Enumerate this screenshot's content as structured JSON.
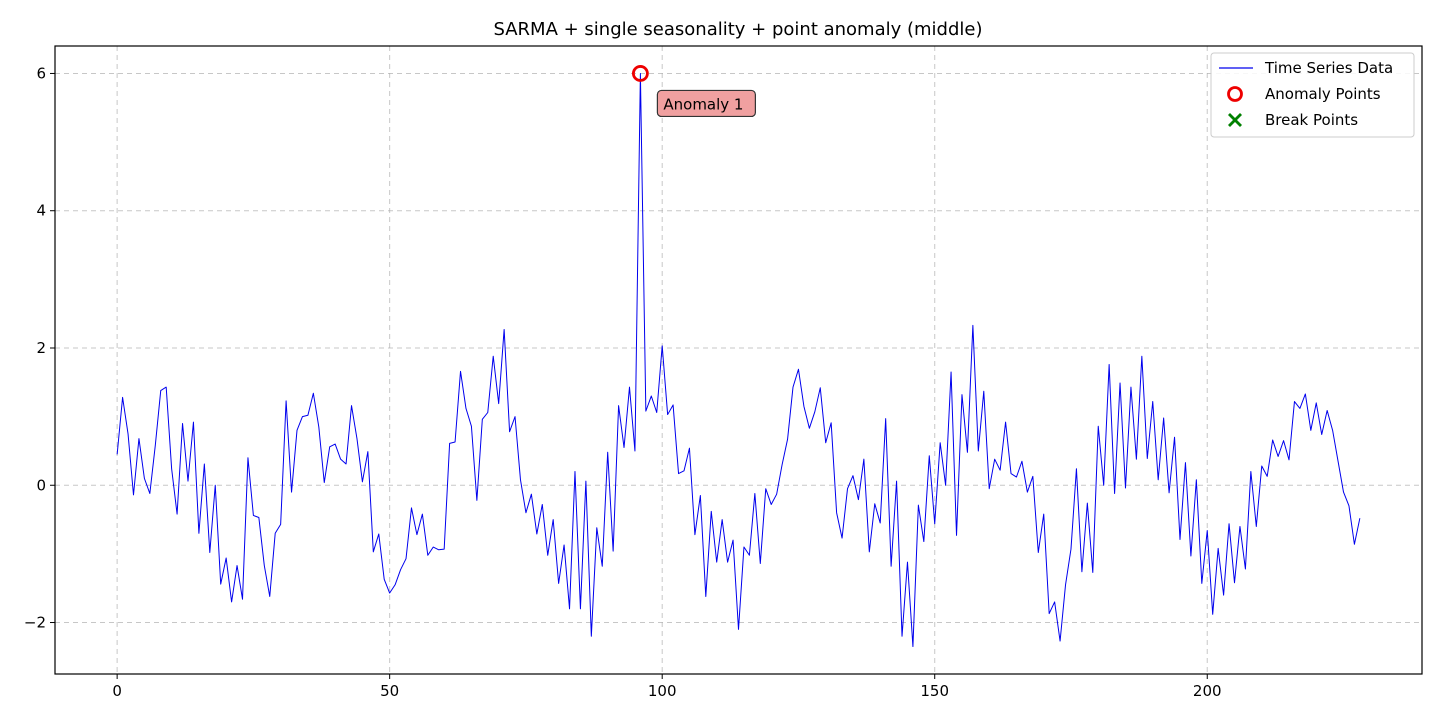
{
  "chart_data": {
    "type": "line",
    "title": "SARMA + single seasonality + point anomaly (middle)",
    "xlabel": "",
    "ylabel": "",
    "xlim": [
      -11.4,
      239.4
    ],
    "ylim": [
      -2.75,
      6.4
    ],
    "xticks": [
      0,
      50,
      100,
      150,
      200
    ],
    "yticks": [
      -2,
      0,
      2,
      4,
      6
    ],
    "ytick_labels": [
      "−2",
      "0",
      "2",
      "4",
      "6"
    ],
    "grid": true,
    "legend_position": "upper right",
    "colors": {
      "series": "#0000ee",
      "anomaly": "#ee0000",
      "break": "#008000",
      "annotation_fill": "#f0a0a0",
      "annotation_edge": "#333333"
    },
    "series": [
      {
        "name": "Time Series Data",
        "x_start": 0,
        "x_step": 1,
        "values": [
          0.45,
          1.28,
          0.75,
          -0.14,
          0.68,
          0.1,
          -0.12,
          0.58,
          1.38,
          1.43,
          0.24,
          -0.42,
          0.9,
          0.06,
          0.92,
          -0.7,
          0.31,
          -0.98,
          0.0,
          -1.44,
          -1.06,
          -1.7,
          -1.17,
          -1.66,
          0.4,
          -0.44,
          -0.47,
          -1.17,
          -1.62,
          -0.7,
          -0.57,
          1.23,
          -0.1,
          0.8,
          1.0,
          1.02,
          1.34,
          0.85,
          0.04,
          0.56,
          0.6,
          0.38,
          0.31,
          1.16,
          0.68,
          0.05,
          0.49,
          -0.97,
          -0.71,
          -1.37,
          -1.57,
          -1.45,
          -1.23,
          -1.07,
          -0.33,
          -0.72,
          -0.42,
          -1.02,
          -0.9,
          -0.94,
          -0.93,
          0.61,
          0.63,
          1.66,
          1.12,
          0.86,
          -0.22,
          0.96,
          1.06,
          1.88,
          1.19,
          2.27,
          0.78,
          1.0,
          0.08,
          -0.4,
          -0.13,
          -0.71,
          -0.28,
          -1.02,
          -0.5,
          -1.43,
          -0.87,
          -1.8,
          0.2,
          -1.8,
          0.06,
          -2.2,
          -0.62,
          -1.18,
          0.48,
          -0.96,
          1.16,
          0.55,
          1.43,
          0.5,
          6.0,
          1.08,
          1.3,
          1.06,
          2.03,
          1.03,
          1.17,
          0.17,
          0.21,
          0.54,
          -0.72,
          -0.15,
          -1.62,
          -0.38,
          -1.12,
          -0.5,
          -1.12,
          -0.8,
          -2.1,
          -0.9,
          -1.02,
          -0.12,
          -1.14,
          -0.05,
          -0.28,
          -0.13,
          0.3,
          0.67,
          1.43,
          1.69,
          1.15,
          0.83,
          1.07,
          1.42,
          0.62,
          0.91,
          -0.4,
          -0.77,
          -0.05,
          0.14,
          -0.21,
          0.38,
          -0.97,
          -0.27,
          -0.55,
          0.97,
          -1.18,
          0.06,
          -2.2,
          -1.12,
          -2.35,
          -0.29,
          -0.82,
          0.43,
          -0.56,
          0.62,
          0.0,
          1.65,
          -0.73,
          1.32,
          0.48,
          2.33,
          0.5,
          1.37,
          -0.05,
          0.38,
          0.22,
          0.92,
          0.17,
          0.12,
          0.35,
          -0.1,
          0.13,
          -0.98,
          -0.42,
          -1.87,
          -1.7,
          -2.27,
          -1.45,
          -0.93,
          0.24,
          -1.26,
          -0.26,
          -1.27,
          0.86,
          0.0,
          1.76,
          -0.12,
          1.49,
          -0.04,
          1.43,
          0.38,
          1.88,
          0.39,
          1.22,
          0.08,
          0.98,
          -0.11,
          0.7,
          -0.79,
          0.33,
          -1.03,
          0.08,
          -1.43,
          -0.66,
          -1.88,
          -0.92,
          -1.6,
          -0.56,
          -1.42,
          -0.6,
          -1.22,
          0.2,
          -0.6,
          0.28,
          0.13,
          0.66,
          0.42,
          0.65,
          0.37,
          1.22,
          1.12,
          1.33,
          0.8,
          1.2,
          0.74,
          1.09,
          0.8,
          0.35,
          -0.1,
          -0.3,
          -0.86,
          -0.48
        ]
      },
      {
        "name": "Anomaly Points",
        "points": [
          {
            "x": 96,
            "y": 6.0
          }
        ]
      },
      {
        "name": "Break Points",
        "points": []
      }
    ],
    "annotations": [
      {
        "text": "Anomaly 1",
        "x": 96,
        "y": 6.0
      }
    ],
    "legend": [
      {
        "label": "Time Series Data",
        "marker": "line"
      },
      {
        "label": "Anomaly Points",
        "marker": "circle"
      },
      {
        "label": "Break Points",
        "marker": "x"
      }
    ]
  }
}
